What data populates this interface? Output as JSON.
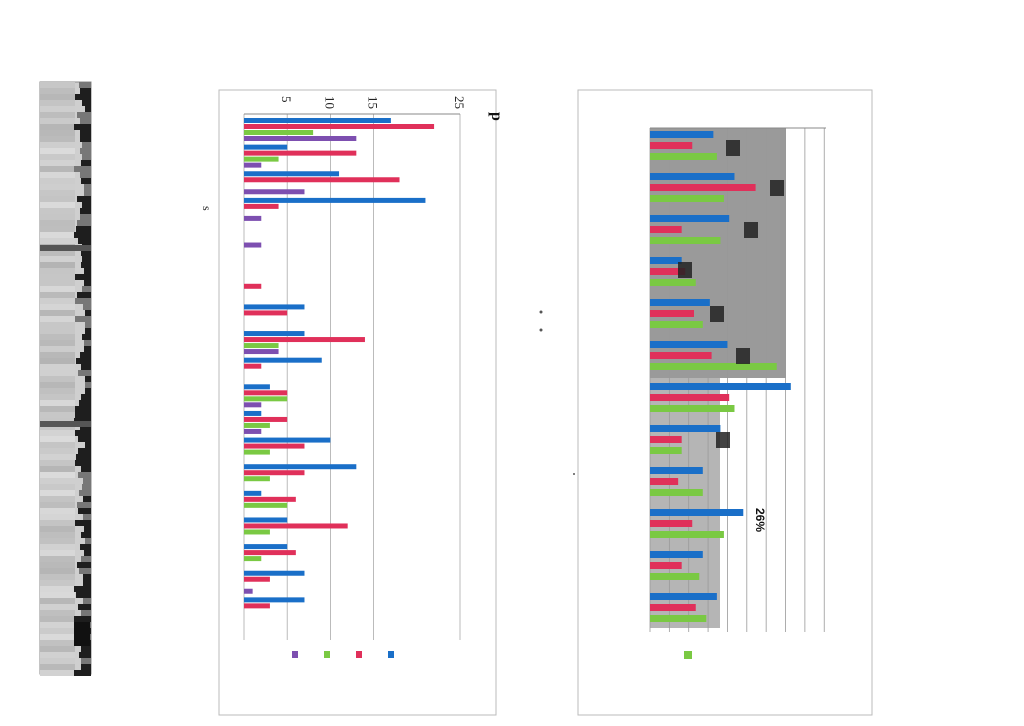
{
  "scan": {
    "colors": {
      "blue": "#1a6fc8",
      "red": "#e0305a",
      "green": "#7ac943",
      "purple": "#7d4fb0"
    },
    "left_strip": {
      "labels": []
    }
  },
  "chart_data": [
    {
      "type": "bar",
      "orientation": "horizontal-rotated",
      "title": "",
      "axis_letter": "p",
      "side_letter": "s",
      "ticks": [
        5,
        10,
        15,
        25
      ],
      "xlim": [
        0,
        25
      ],
      "grid": true,
      "legend": {
        "placement": "bottom",
        "colors": [
          "purple",
          "green",
          "red",
          "blue"
        ]
      },
      "series": [
        {
          "color": "blue",
          "values": [
            17,
            5,
            11,
            21,
            0,
            0,
            0,
            7,
            7,
            9,
            3,
            2,
            10,
            13,
            2,
            5,
            5,
            7,
            7
          ]
        },
        {
          "color": "red",
          "values": [
            22,
            13,
            18,
            4,
            0,
            0,
            2,
            5,
            14,
            2,
            5,
            5,
            7,
            7,
            6,
            12,
            6,
            3,
            3
          ]
        },
        {
          "color": "green",
          "values": [
            8,
            4,
            0,
            0,
            0,
            0,
            0,
            0,
            4,
            0,
            5,
            3,
            3,
            3,
            5,
            3,
            2,
            0,
            0
          ]
        },
        {
          "color": "purple",
          "values": [
            13,
            2,
            7,
            2,
            2,
            0,
            0,
            0,
            4,
            0,
            2,
            2,
            0,
            0,
            0,
            0,
            0,
            1,
            0
          ]
        }
      ]
    },
    {
      "type": "bar",
      "orientation": "horizontal-rotated",
      "title": "",
      "annotations": [
        "26%",
        "%"
      ],
      "grid": true,
      "xlim": [
        0,
        100
      ],
      "legend": {
        "placement": "bottom",
        "colors": [
          "green"
        ]
      },
      "series": [
        {
          "color": "blue",
          "values": [
            36,
            48,
            45,
            18,
            34,
            44,
            80,
            40,
            30,
            53,
            30,
            38
          ]
        },
        {
          "color": "red",
          "values": [
            24,
            60,
            18,
            20,
            25,
            35,
            45,
            18,
            16,
            24,
            18,
            26
          ]
        },
        {
          "color": "green",
          "values": [
            38,
            42,
            40,
            26,
            30,
            72,
            48,
            18,
            30,
            42,
            28,
            32
          ]
        }
      ]
    }
  ]
}
